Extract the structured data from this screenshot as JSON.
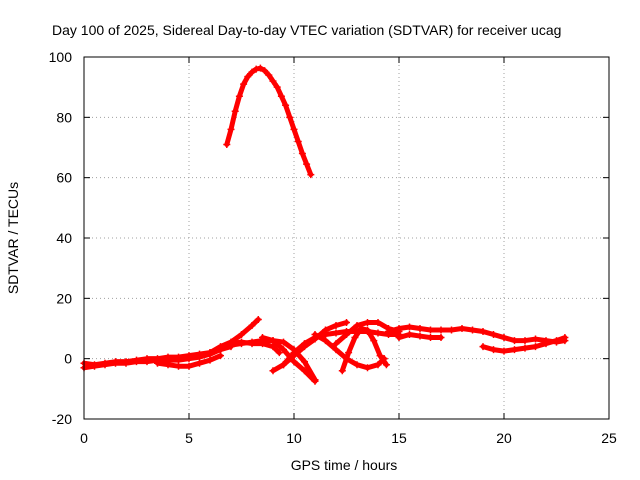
{
  "chart_data": {
    "type": "scatter",
    "title": "Day 100 of 2025, Sidereal Day-to-day VTEC variation (SDTVAR) for receiver ucag",
    "xlabel": "GPS time / hours",
    "ylabel": "SDTVAR / TECUs",
    "xlim": [
      0,
      25
    ],
    "ylim": [
      -20,
      100
    ],
    "xticks": [
      0,
      5,
      10,
      15,
      20,
      25
    ],
    "yticks": [
      -20,
      0,
      20,
      40,
      60,
      80,
      100
    ],
    "xtick_labels": [
      "0",
      "5",
      "10",
      "15",
      "20",
      "25"
    ],
    "ytick_labels": [
      "-20",
      "0",
      "20",
      "40",
      "60",
      "80",
      "100"
    ],
    "grid": true,
    "marker": "plus",
    "color": "#ff0000",
    "series": [
      {
        "name": "arc-peak",
        "x": [
          6.8,
          7.0,
          7.2,
          7.4,
          7.6,
          7.8,
          8.0,
          8.2,
          8.4,
          8.6,
          8.8,
          9.0,
          9.2,
          9.4,
          9.6,
          9.8,
          10.0,
          10.2,
          10.4,
          10.6,
          10.8
        ],
        "y": [
          71,
          76,
          82,
          87,
          91,
          93.5,
          95,
          96,
          96.3,
          95.5,
          94,
          92,
          90,
          87,
          84,
          80,
          76,
          72,
          68,
          64.5,
          61
        ]
      },
      {
        "name": "arc-base-a",
        "x": [
          0.0,
          0.5,
          1.0,
          1.5,
          2.0,
          2.5,
          3.0,
          3.5,
          4.0,
          4.5,
          5.0,
          5.5,
          6.0,
          6.5,
          7.0,
          7.5,
          8.0,
          8.5,
          9.0,
          9.5,
          10.0,
          10.5,
          11.0
        ],
        "y": [
          -3,
          -2.5,
          -2,
          -1.5,
          -1.5,
          -1,
          -1,
          -0.5,
          -0.5,
          -0.5,
          0,
          0.5,
          1.5,
          3,
          4.5,
          5,
          5.5,
          6,
          6,
          5.5,
          3,
          -1,
          -7
        ]
      },
      {
        "name": "arc-base-b",
        "x": [
          0.0,
          0.5,
          1.0,
          1.5,
          2.0,
          2.5,
          3.0,
          3.5,
          4.0,
          4.5,
          5.0,
          5.5,
          6.0,
          6.5,
          7.0
        ],
        "y": [
          -1.5,
          -2,
          -1.5,
          -1,
          -1,
          -0.5,
          0,
          0,
          0.5,
          0.5,
          1,
          1.5,
          2,
          3,
          4
        ]
      },
      {
        "name": "arc-base-c",
        "x": [
          3.5,
          4.0,
          4.5,
          5.0,
          5.5,
          6.0,
          6.5
        ],
        "y": [
          -1.5,
          -2,
          -2.5,
          -2.5,
          -1.5,
          -0.5,
          1
        ]
      },
      {
        "name": "arc-rise-a",
        "x": [
          5.5,
          6.0,
          6.5,
          7.0,
          7.5,
          8.0,
          8.3
        ],
        "y": [
          1,
          2,
          4,
          5.5,
          8,
          11,
          13
        ]
      },
      {
        "name": "arc-rise-b",
        "x": [
          6.5,
          7.0,
          7.5,
          8.0,
          8.5,
          9.0,
          9.3
        ],
        "y": [
          3,
          5,
          5.5,
          5,
          5,
          4,
          2
        ]
      },
      {
        "name": "arc-mid-a",
        "x": [
          8.5,
          9.0,
          9.5,
          10.0,
          10.5,
          11.0
        ],
        "y": [
          7,
          6,
          3,
          -1,
          -4,
          -7.5
        ]
      },
      {
        "name": "arc-mid-b",
        "x": [
          9.0,
          9.5,
          10.0,
          10.5,
          11.0,
          11.5,
          12.0,
          12.5
        ],
        "y": [
          -4,
          -2,
          1,
          4,
          6.5,
          9.5,
          11,
          12
        ]
      },
      {
        "name": "arc-mid-c",
        "x": [
          9.5,
          10.0,
          10.5,
          11.0,
          11.5,
          12.0,
          12.5,
          13.0,
          13.5,
          14.0,
          14.5,
          15.0
        ],
        "y": [
          -2,
          2,
          5,
          7,
          8,
          8.5,
          9,
          9,
          9,
          8.5,
          8,
          8
        ]
      },
      {
        "name": "arc-lobe-a",
        "x": [
          12.3,
          12.6,
          12.9,
          13.2,
          13.5,
          13.8,
          14.1,
          14.4
        ],
        "y": [
          -4,
          2,
          7,
          10,
          9.5,
          6,
          1,
          -2
        ]
      },
      {
        "name": "arc-lobe-b",
        "x": [
          11.0,
          11.5,
          12.0,
          12.5,
          13.0,
          13.5,
          14.0,
          14.3
        ],
        "y": [
          8,
          6,
          3,
          0,
          -2,
          -3,
          -2,
          0
        ]
      },
      {
        "name": "arc-lobe-c",
        "x": [
          12.0,
          12.5,
          13.0,
          13.5,
          14.0,
          14.5,
          15.0
        ],
        "y": [
          5,
          8,
          11,
          12,
          12,
          10,
          9
        ]
      },
      {
        "name": "arc-plateau",
        "x": [
          14.5,
          15.0,
          15.5,
          16.0,
          16.5,
          17.0,
          17.5,
          18.0,
          18.5,
          19.0,
          19.5,
          20.0,
          20.5,
          21.0,
          21.5,
          22.0,
          22.5,
          22.9
        ],
        "y": [
          9,
          10,
          10.5,
          10,
          9.5,
          9.5,
          9.5,
          10,
          9.5,
          9,
          8,
          7,
          6,
          6,
          6.5,
          6,
          5.5,
          6
        ]
      },
      {
        "name": "arc-plateau-b",
        "x": [
          15.0,
          15.5,
          16.0,
          16.5,
          17.0
        ],
        "y": [
          7,
          8,
          7.5,
          7,
          7
        ]
      },
      {
        "name": "arc-tail",
        "x": [
          19.0,
          19.5,
          20.0,
          20.5,
          21.0,
          21.5,
          22.0,
          22.5,
          22.9
        ],
        "y": [
          4,
          3,
          2.5,
          3,
          3.5,
          4,
          5,
          6,
          7
        ]
      }
    ]
  }
}
